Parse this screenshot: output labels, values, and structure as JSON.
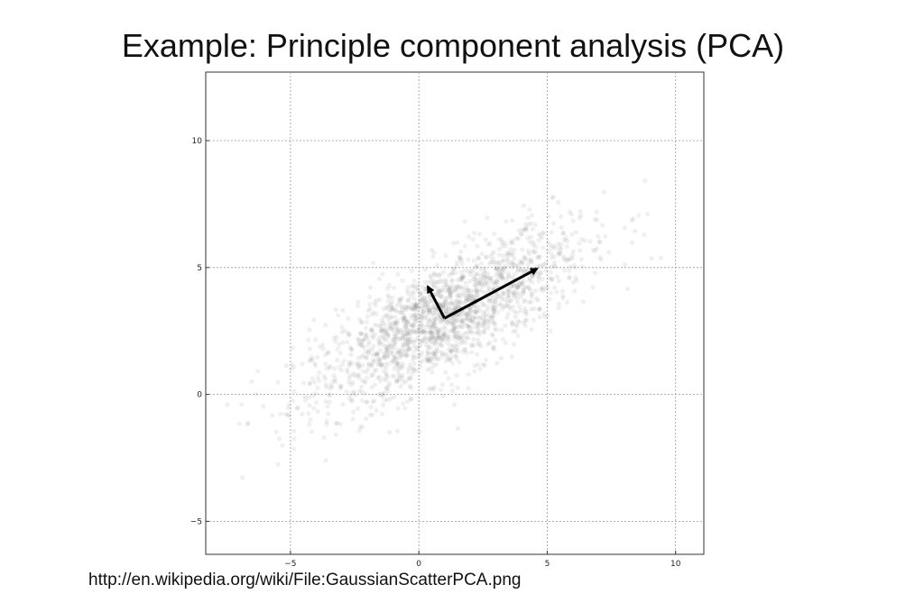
{
  "slide": {
    "title": "Example:  Principle component analysis (PCA)",
    "source_url": "http://en.wikipedia.org/wiki/File:GaussianScatterPCA.png"
  },
  "chart_data": {
    "type": "scatter",
    "title": "",
    "xlabel": "",
    "ylabel": "",
    "xlim": [
      -8.3,
      11.1
    ],
    "ylim": [
      -6.3,
      12.7
    ],
    "x_ticks": [
      -5,
      0,
      5,
      10
    ],
    "y_ticks": [
      -5,
      0,
      5,
      10
    ],
    "x_tick_labels": [
      "−5",
      "0",
      "5",
      "10"
    ],
    "y_tick_labels": [
      "−5",
      "0",
      "5",
      "10"
    ],
    "grid": true,
    "point_color": "#555555",
    "distribution": {
      "kind": "bivariate_gaussian",
      "mean": [
        1,
        3
      ],
      "major_axis_direction": [
        0.866,
        0.5
      ],
      "major_std": 3,
      "minor_std": 1,
      "n_points": 1800
    },
    "arrows": [
      {
        "name": "principal-component-1",
        "from": [
          1,
          3
        ],
        "to": [
          4.6,
          4.95
        ]
      },
      {
        "name": "principal-component-2",
        "from": [
          1,
          3
        ],
        "to": [
          0.35,
          4.25
        ]
      }
    ]
  }
}
